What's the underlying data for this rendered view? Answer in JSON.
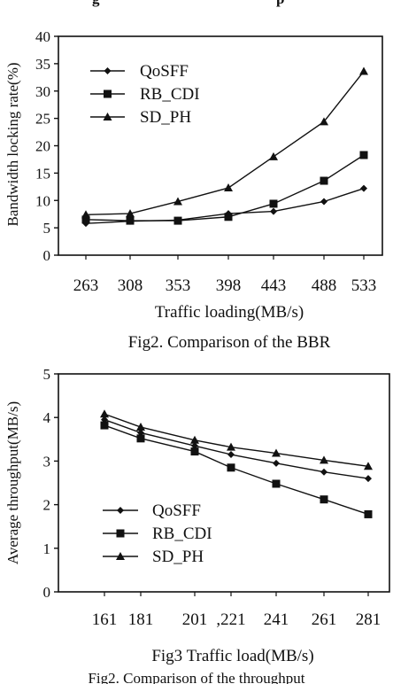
{
  "top_fragment": [
    "g",
    "p"
  ],
  "bottom_fragment": "Fig2. Comparison of the throughput",
  "chart_data": [
    {
      "type": "line",
      "caption": "Fig2. Comparison of the BBR",
      "xlabel": "Traffic loading(MB/s)",
      "ylabel": "Bandwidth locking rate(%)",
      "categories": [
        "263",
        "308",
        "353",
        "398",
        "443",
        "488",
        "533"
      ],
      "ylim": [
        0,
        40
      ],
      "yticks": [
        0,
        5,
        10,
        15,
        20,
        25,
        30,
        35,
        40
      ],
      "legend_position": "top-left",
      "series": [
        {
          "name": "QoSFF",
          "marker": "diamond",
          "values": [
            5.8,
            6.2,
            6.4,
            7.6,
            8.0,
            9.8,
            12.2
          ]
        },
        {
          "name": "RB_CDI",
          "marker": "square",
          "values": [
            6.5,
            6.3,
            6.3,
            7.0,
            9.4,
            13.6,
            18.3
          ]
        },
        {
          "name": "SD_PH",
          "marker": "triangle",
          "values": [
            7.4,
            7.6,
            9.8,
            12.3,
            18.0,
            24.4,
            33.6
          ]
        }
      ]
    },
    {
      "type": "line",
      "caption": "Fig3 Traffic load(MB/s)",
      "xlabel": "",
      "ylabel": "Average throughput(MB/s)",
      "categories": [
        "161",
        "181",
        "201",
        ",221",
        "241",
        "261",
        "281"
      ],
      "ylim": [
        0,
        5
      ],
      "yticks": [
        0,
        1,
        2,
        3,
        4,
        5
      ],
      "legend_position": "bottom-left",
      "series": [
        {
          "name": "QoSFF",
          "marker": "diamond",
          "values": [
            3.95,
            3.65,
            3.35,
            3.15,
            2.95,
            2.75,
            2.6
          ]
        },
        {
          "name": "RB_CDI",
          "marker": "square",
          "values": [
            3.82,
            3.52,
            3.22,
            2.85,
            2.48,
            2.12,
            1.78
          ]
        },
        {
          "name": "SD_PH",
          "marker": "triangle",
          "values": [
            4.08,
            3.78,
            3.48,
            3.32,
            3.18,
            3.02,
            2.88
          ]
        }
      ]
    }
  ]
}
